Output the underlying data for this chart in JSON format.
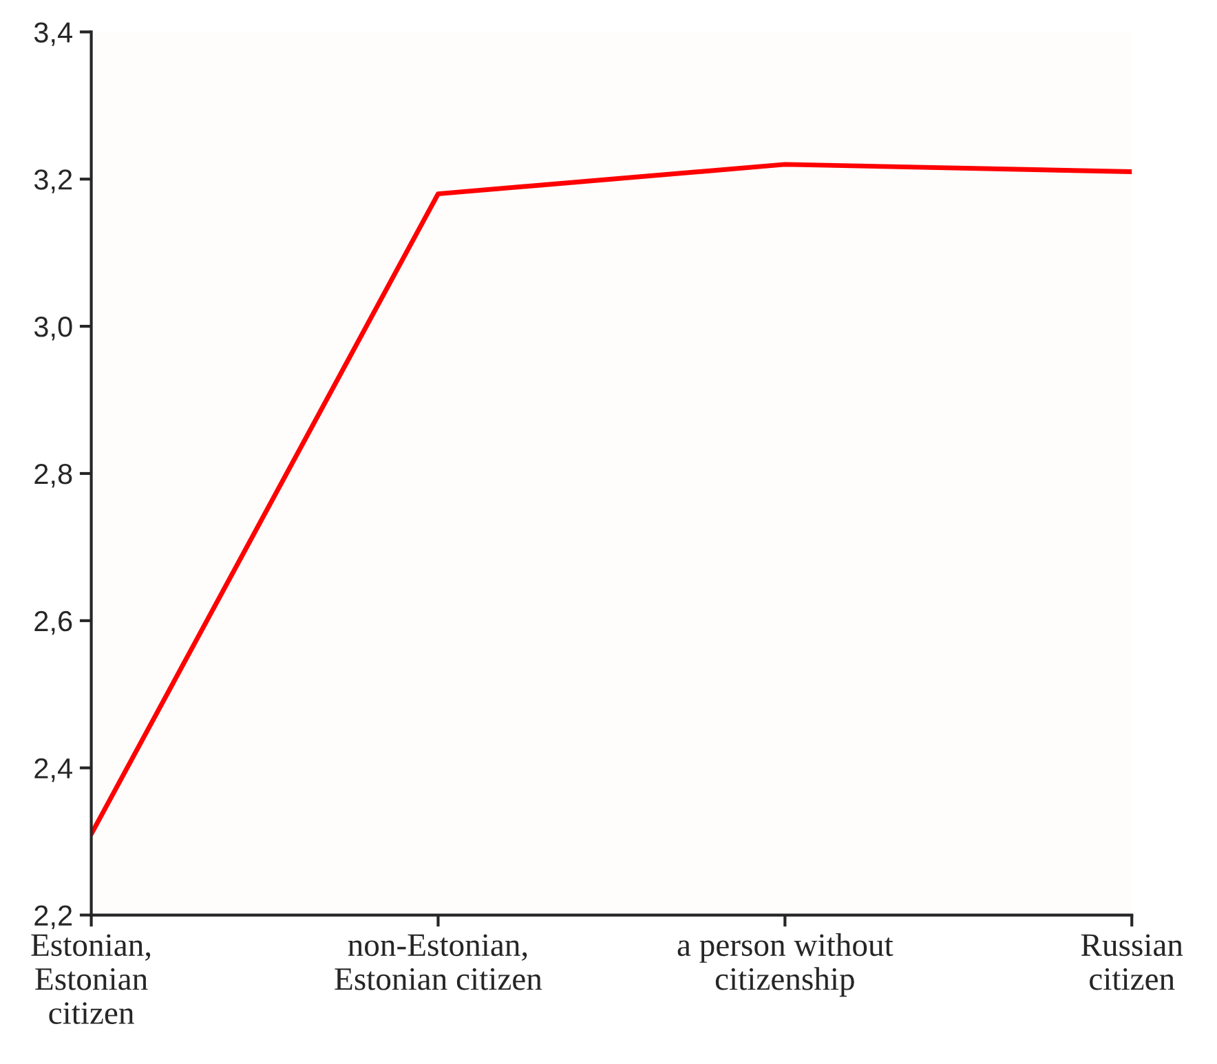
{
  "chart_data": {
    "type": "line",
    "categories": [
      "Estonian,\nEstonian\ncitizen",
      "non-Estonian,\nEstonian citizen",
      "a person without\ncitizenship",
      "Russian\ncitizen"
    ],
    "series": [
      {
        "color": "#ff0000",
        "values": [
          2.31,
          3.18,
          3.22,
          3.21
        ]
      }
    ],
    "ylim": [
      2.2,
      3.4
    ],
    "yticks": [
      {
        "value": 2.2,
        "label": "2,2"
      },
      {
        "value": 2.4,
        "label": "2,4"
      },
      {
        "value": 2.6,
        "label": "2,6"
      },
      {
        "value": 2.8,
        "label": "2,8"
      },
      {
        "value": 3.0,
        "label": "3,0"
      },
      {
        "value": 3.2,
        "label": "3,2"
      },
      {
        "value": 3.4,
        "label": "3,4"
      }
    ],
    "grid": false,
    "legend": false,
    "marker": "none",
    "line_style": "solid"
  }
}
